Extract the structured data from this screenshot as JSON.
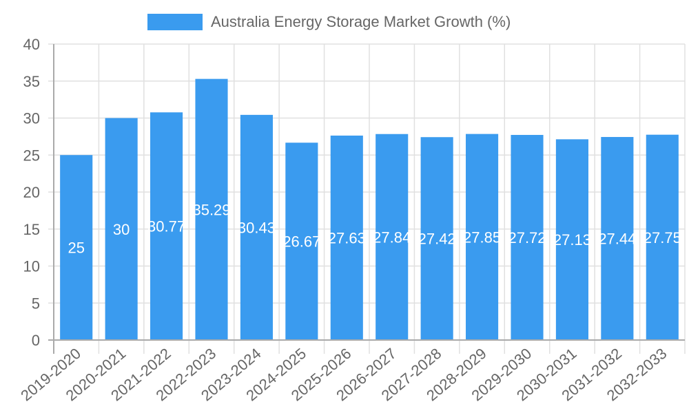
{
  "legend": {
    "label": "Australia Energy Storage Market Growth (%)",
    "color": "#3a9bef"
  },
  "chart_data": {
    "type": "bar",
    "title": "",
    "xlabel": "",
    "ylabel": "",
    "ylim": [
      0,
      40
    ],
    "yticks": [
      0,
      5,
      10,
      15,
      20,
      25,
      30,
      35,
      40
    ],
    "grid": true,
    "legend_position": "top",
    "categories": [
      "2019-2020",
      "2020-2021",
      "2021-2022",
      "2022-2023",
      "2023-2024",
      "2024-2025",
      "2025-2026",
      "2026-2027",
      "2027-2028",
      "2028-2029",
      "2029-2030",
      "2030-2031",
      "2031-2032",
      "2032-2033"
    ],
    "series": [
      {
        "name": "Australia Energy Storage Market Growth (%)",
        "color": "#3a9bef",
        "values": [
          25,
          30,
          30.77,
          35.29,
          30.43,
          26.67,
          27.63,
          27.84,
          27.42,
          27.85,
          27.72,
          27.13,
          27.44,
          27.75
        ]
      }
    ],
    "data_labels": [
      "25",
      "30",
      "30.77",
      "35.29",
      "30.43",
      "26.67",
      "27.63",
      "27.84",
      "27.42",
      "27.85",
      "27.72",
      "27.13",
      "27.44",
      "27.75"
    ]
  }
}
